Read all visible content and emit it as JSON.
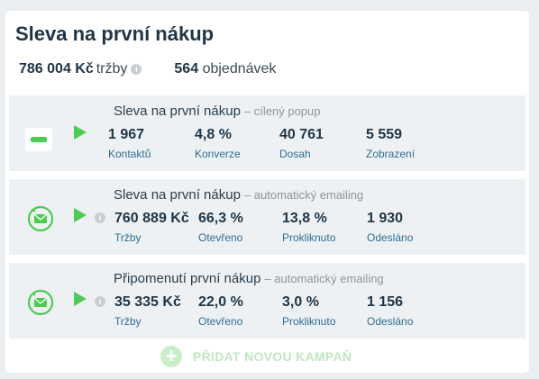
{
  "header": {
    "title": "Sleva na první nákup",
    "revenue_value": "786 004 Kč",
    "revenue_label": "tržby",
    "orders_value": "564",
    "orders_label": "objednávek"
  },
  "campaigns": [
    {
      "name": "Sleva na první nákup",
      "type": "– cílený popup",
      "icon": "popup-icon",
      "metrics": [
        {
          "value": "1 967",
          "label": "Kontaktů"
        },
        {
          "value": "4,8 %",
          "label": "Konverze"
        },
        {
          "value": "40 761",
          "label": "Dosah"
        },
        {
          "value": "5 559",
          "label": "Zobrazení"
        }
      ]
    },
    {
      "name": "Sleva na první nákup",
      "type": "– automatický emailing",
      "icon": "email-icon",
      "metrics": [
        {
          "value": "760 889 Kč",
          "label": "Tržby"
        },
        {
          "value": "66,3 %",
          "label": "Otevřeno"
        },
        {
          "value": "13,8 %",
          "label": "Prokliknuto"
        },
        {
          "value": "1 930",
          "label": "Odesláno"
        }
      ]
    },
    {
      "name": "Připomenutí první nákup",
      "type": "– automatický emailing",
      "icon": "email-icon",
      "metrics": [
        {
          "value": "35 335 Kč",
          "label": "Tržby"
        },
        {
          "value": "22,0 %",
          "label": "Otevřeno"
        },
        {
          "value": "3,0 %",
          "label": "Prokliknuto"
        },
        {
          "value": "1 156",
          "label": "Odesláno"
        }
      ]
    }
  ],
  "add_campaign": {
    "plus": "+",
    "label": "PŘIDAT NOVOU KAMPAŇ"
  },
  "colors": {
    "accent_green": "#4ccc52",
    "label_blue": "#2f6e94",
    "text_dark": "#1f3546"
  }
}
